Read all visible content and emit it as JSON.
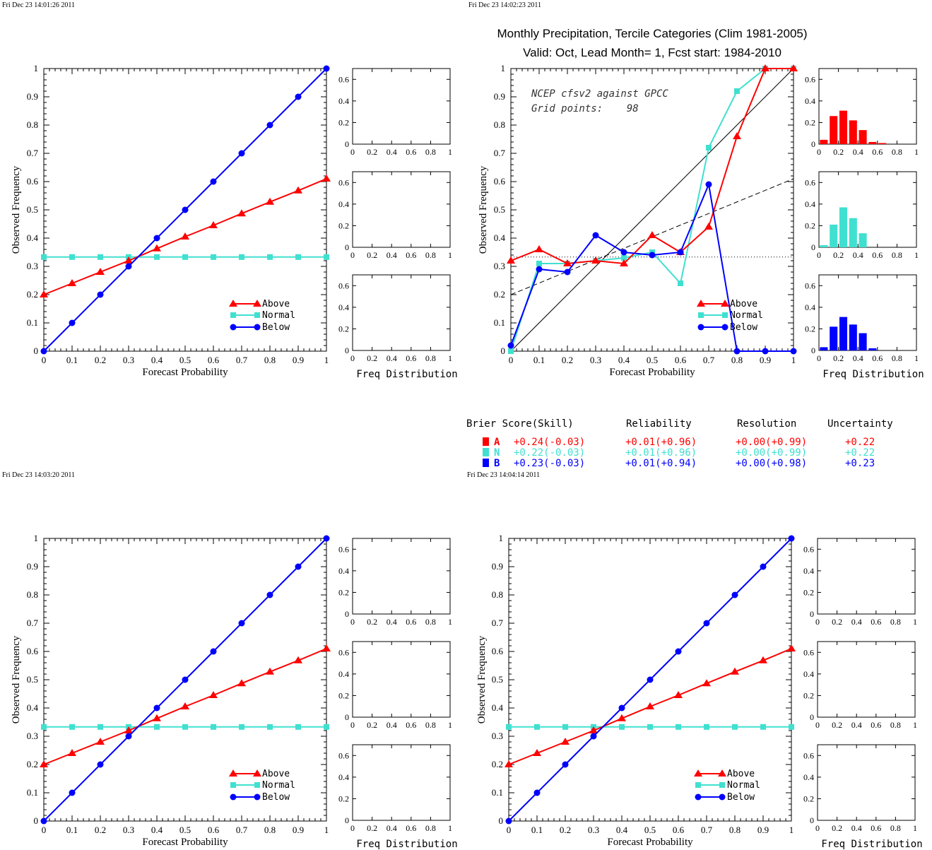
{
  "colors": {
    "above": "#ff0000",
    "normal": "#40e0d0",
    "below": "#0000ff",
    "axis": "#000000"
  },
  "panels": [
    {
      "timestamp": "Fri Dec 23 14:01:26 2011",
      "xlabel": "Forecast Probability",
      "ylabel": "Observed Frequency",
      "legend": [
        "Above",
        "Normal",
        "Below"
      ],
      "hist_label": "Freq Distribution"
    },
    {
      "timestamp": "Fri Dec 23 14:02:23 2011",
      "title_line1": "Monthly Precipitation, Tercile Categories (Clim 1981-2005)",
      "title_line2": "Valid: Oct, Lead Month= 1, Fcst start: 1984-2010",
      "annotation_line1": "NCEP cfsv2 against GPCC",
      "annotation_line2": "Grid points:    98",
      "xlabel": "Forecast Probability",
      "ylabel": "Observed Frequency",
      "legend": [
        "Above",
        "Normal",
        "Below"
      ],
      "hist_label": "Freq Distribution"
    },
    {
      "timestamp": "Fri Dec 23 14:03:20 2011",
      "xlabel": "Forecast Probability",
      "ylabel": "Observed Frequency",
      "legend": [
        "Above",
        "Normal",
        "Below"
      ],
      "hist_label": "Freq Distribution"
    },
    {
      "timestamp": "Fri Dec 23 14:04:14 2011",
      "xlabel": "Forecast Probability",
      "ylabel": "Observed Frequency",
      "legend": [
        "Above",
        "Normal",
        "Below"
      ],
      "hist_label": "Freq Distribution"
    }
  ],
  "scores": {
    "headers": [
      "Brier Score(Skill)",
      "Reliability",
      "Resolution",
      "Uncertainty"
    ],
    "rows": [
      {
        "cat": "A",
        "brier": "+0.24(-0.03)",
        "reliability": "+0.01(+0.96)",
        "resolution": "+0.00(+0.99)",
        "uncertainty": "+0.22"
      },
      {
        "cat": "N",
        "brier": "+0.22(-0.03)",
        "reliability": "+0.01(+0.96)",
        "resolution": "+0.00(+0.99)",
        "uncertainty": "+0.22"
      },
      {
        "cat": "B",
        "brier": "+0.23(-0.03)",
        "reliability": "+0.01(+0.94)",
        "resolution": "+0.00(+0.98)",
        "uncertainty": "+0.23"
      }
    ]
  },
  "chart_data": [
    {
      "type": "line",
      "panel": 0,
      "xlabel": "Forecast Probability",
      "ylabel": "Observed Frequency",
      "xlim": [
        0,
        1
      ],
      "ylim": [
        0,
        1
      ],
      "x": [
        0,
        0.1,
        0.2,
        0.3,
        0.4,
        0.5,
        0.6,
        0.7,
        0.8,
        0.9,
        1.0
      ],
      "series": [
        {
          "name": "Above",
          "values": [
            0.2,
            0.24,
            0.28,
            0.32,
            0.363,
            0.405,
            0.445,
            0.487,
            0.528,
            0.568,
            0.61
          ]
        },
        {
          "name": "Normal",
          "values": [
            0.333,
            0.333,
            0.333,
            0.333,
            0.333,
            0.333,
            0.333,
            0.333,
            0.333,
            0.333,
            0.333
          ]
        },
        {
          "name": "Below",
          "values": [
            0,
            0.1,
            0.2,
            0.3,
            0.4,
            0.5,
            0.6,
            0.7,
            0.8,
            0.9,
            1.0
          ]
        }
      ],
      "histograms": {
        "ylim": [
          0,
          0.7
        ],
        "yticks": [
          0,
          0.2,
          0.4,
          0.6
        ],
        "xticks": [
          0,
          0.2,
          0.4,
          0.6,
          0.8,
          1
        ],
        "Above": [],
        "Normal": [],
        "Below": []
      }
    },
    {
      "type": "line",
      "panel": 1,
      "xlabel": "Forecast Probability",
      "ylabel": "Observed Frequency",
      "xlim": [
        0,
        1
      ],
      "ylim": [
        0,
        1
      ],
      "x": [
        0,
        0.1,
        0.2,
        0.3,
        0.4,
        0.5,
        0.6,
        0.7,
        0.8,
        0.9,
        1.0
      ],
      "series": [
        {
          "name": "Above",
          "values": [
            0.32,
            0.36,
            0.31,
            0.32,
            0.31,
            0.41,
            0.35,
            0.44,
            0.76,
            1.0,
            1.0
          ]
        },
        {
          "name": "Normal",
          "values": [
            0.0,
            0.31,
            0.31,
            0.32,
            0.33,
            0.35,
            0.24,
            0.72,
            0.92,
            1.0,
            1.0
          ]
        },
        {
          "name": "Below",
          "values": [
            0.02,
            0.29,
            0.28,
            0.41,
            0.35,
            0.34,
            0.35,
            0.59,
            0.0,
            0.0,
            0.0
          ]
        }
      ],
      "reference_lines": {
        "climatology": 0.333,
        "skill_line": [
          [
            0,
            0.2
          ],
          [
            1,
            0.61
          ]
        ],
        "diagonal": [
          [
            0,
            0
          ],
          [
            1,
            1
          ]
        ]
      },
      "histograms": {
        "ylim": [
          0,
          0.7
        ],
        "yticks": [
          0,
          0.2,
          0.4,
          0.6
        ],
        "xticks": [
          0,
          0.2,
          0.4,
          0.6,
          0.8,
          1
        ],
        "bin_centers": [
          0.05,
          0.15,
          0.25,
          0.35,
          0.45,
          0.55,
          0.65,
          0.75
        ],
        "Above": [
          0.04,
          0.26,
          0.31,
          0.22,
          0.13,
          0.02,
          0.01,
          0.0
        ],
        "Normal": [
          0.02,
          0.21,
          0.37,
          0.27,
          0.13,
          0.0,
          0.0,
          0.0
        ],
        "Below": [
          0.03,
          0.22,
          0.31,
          0.24,
          0.16,
          0.02,
          0.0,
          0.0
        ]
      }
    },
    {
      "type": "line",
      "panel": 2,
      "xlabel": "Forecast Probability",
      "ylabel": "Observed Frequency",
      "xlim": [
        0,
        1
      ],
      "ylim": [
        0,
        1
      ],
      "x": [
        0,
        0.1,
        0.2,
        0.3,
        0.4,
        0.5,
        0.6,
        0.7,
        0.8,
        0.9,
        1.0
      ],
      "series": [
        {
          "name": "Above",
          "values": [
            0.2,
            0.24,
            0.28,
            0.32,
            0.363,
            0.405,
            0.445,
            0.487,
            0.528,
            0.568,
            0.61
          ]
        },
        {
          "name": "Normal",
          "values": [
            0.333,
            0.333,
            0.333,
            0.333,
            0.333,
            0.333,
            0.333,
            0.333,
            0.333,
            0.333,
            0.333
          ]
        },
        {
          "name": "Below",
          "values": [
            0,
            0.1,
            0.2,
            0.3,
            0.4,
            0.5,
            0.6,
            0.7,
            0.8,
            0.9,
            1.0
          ]
        }
      ],
      "histograms": {
        "ylim": [
          0,
          0.7
        ],
        "yticks": [
          0,
          0.2,
          0.4,
          0.6
        ],
        "xticks": [
          0,
          0.2,
          0.4,
          0.6,
          0.8,
          1
        ],
        "Above": [],
        "Normal": [],
        "Below": []
      }
    },
    {
      "type": "line",
      "panel": 3,
      "xlabel": "Forecast Probability",
      "ylabel": "Observed Frequency",
      "xlim": [
        0,
        1
      ],
      "ylim": [
        0,
        1
      ],
      "x": [
        0,
        0.1,
        0.2,
        0.3,
        0.4,
        0.5,
        0.6,
        0.7,
        0.8,
        0.9,
        1.0
      ],
      "series": [
        {
          "name": "Above",
          "values": [
            0.2,
            0.24,
            0.28,
            0.32,
            0.363,
            0.405,
            0.445,
            0.487,
            0.528,
            0.568,
            0.61
          ]
        },
        {
          "name": "Normal",
          "values": [
            0.333,
            0.333,
            0.333,
            0.333,
            0.333,
            0.333,
            0.333,
            0.333,
            0.333,
            0.333,
            0.333
          ]
        },
        {
          "name": "Below",
          "values": [
            0,
            0.1,
            0.2,
            0.3,
            0.4,
            0.5,
            0.6,
            0.7,
            0.8,
            0.9,
            1.0
          ]
        }
      ],
      "histograms": {
        "ylim": [
          0,
          0.7
        ],
        "yticks": [
          0,
          0.2,
          0.4,
          0.6
        ],
        "xticks": [
          0,
          0.2,
          0.4,
          0.6,
          0.8,
          1
        ],
        "Above": [],
        "Normal": [],
        "Below": []
      }
    }
  ]
}
